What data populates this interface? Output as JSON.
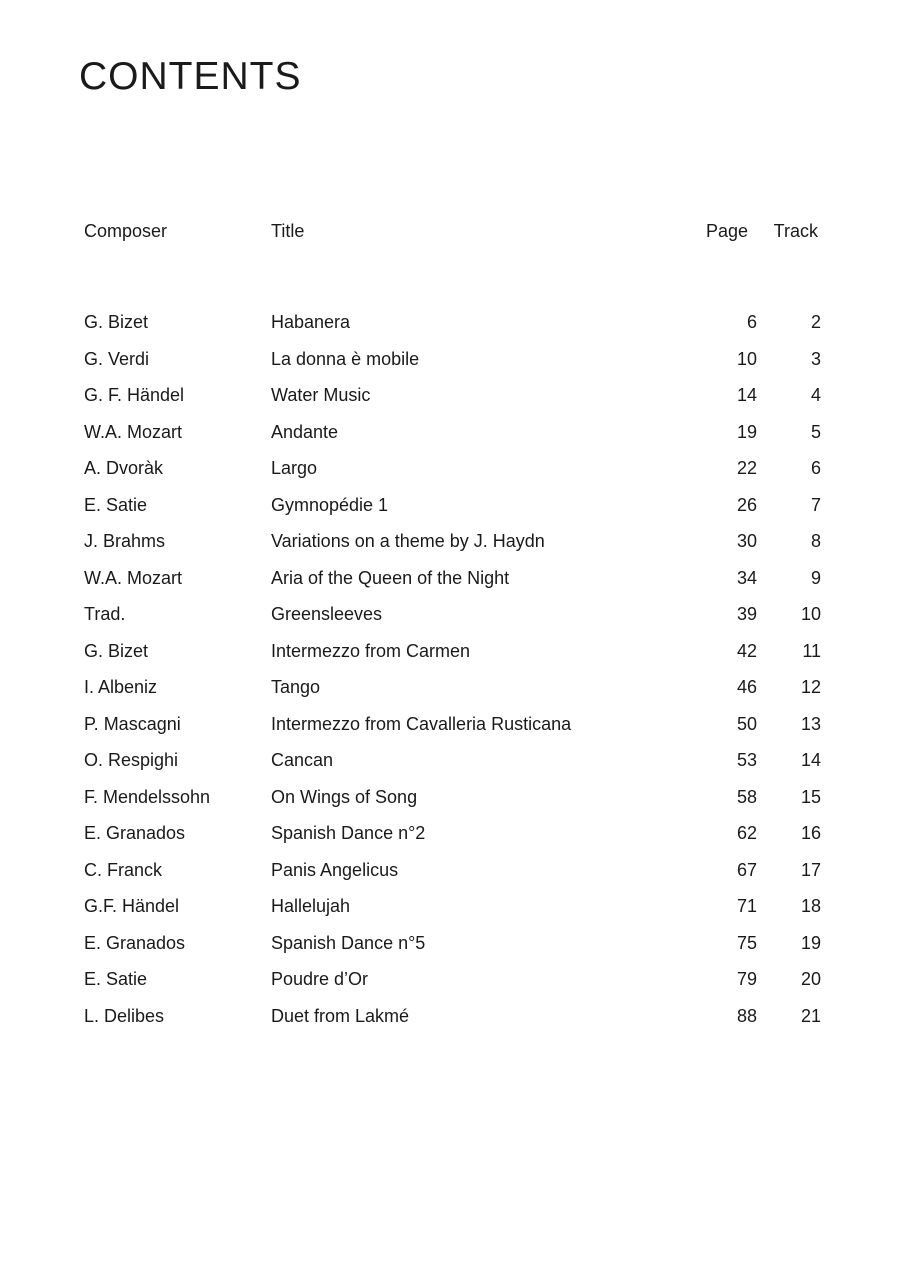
{
  "title": "CONTENTS",
  "headers": {
    "composer": "Composer",
    "title": "Title",
    "page": "Page",
    "track": "Track"
  },
  "rows": [
    {
      "composer": "G. Bizet",
      "title": "Habanera",
      "page": "6",
      "track": "2"
    },
    {
      "composer": "G. Verdi",
      "title": "La donna è mobile",
      "page": "10",
      "track": "3"
    },
    {
      "composer": "G. F. Händel",
      "title": "Water Music",
      "page": "14",
      "track": "4"
    },
    {
      "composer": "W.A. Mozart",
      "title": "Andante",
      "page": "19",
      "track": "5"
    },
    {
      "composer": "A. Dvoràk",
      "title": "Largo",
      "page": "22",
      "track": "6"
    },
    {
      "composer": "E. Satie",
      "title": "Gymnopédie 1",
      "page": "26",
      "track": "7"
    },
    {
      "composer": "J. Brahms",
      "title": "Variations on a theme by J. Haydn",
      "page": "30",
      "track": "8"
    },
    {
      "composer": "W.A. Mozart",
      "title": "Aria of the Queen of the Night",
      "page": "34",
      "track": "9"
    },
    {
      "composer": "Trad.",
      "title": "Greensleeves",
      "page": "39",
      "track": "10"
    },
    {
      "composer": "G. Bizet",
      "title": "Intermezzo from Carmen",
      "page": "42",
      "track": "11"
    },
    {
      "composer": "I. Albeniz",
      "title": "Tango",
      "page": "46",
      "track": "12"
    },
    {
      "composer": "P. Mascagni",
      "title": "Intermezzo from Cavalleria Rusticana",
      "page": "50",
      "track": "13"
    },
    {
      "composer": "O. Respighi",
      "title": "Cancan",
      "page": "53",
      "track": "14"
    },
    {
      "composer": "F. Mendelssohn",
      "title": "On Wings of Song",
      "page": "58",
      "track": "15"
    },
    {
      "composer": "E. Granados",
      "title": "Spanish Dance n°2",
      "page": "62",
      "track": "16"
    },
    {
      "composer": "C. Franck",
      "title": "Panis Angelicus",
      "page": "67",
      "track": "17"
    },
    {
      "composer": "G.F. Händel",
      "title": "Hallelujah",
      "page": "71",
      "track": "18"
    },
    {
      "composer": "E. Granados",
      "title": "Spanish Dance n°5",
      "page": "75",
      "track": "19"
    },
    {
      "composer": "E. Satie",
      "title": "Poudre d’Or",
      "page": "79",
      "track": "20"
    },
    {
      "composer": "L. Delibes",
      "title": "Duet from Lakmé",
      "page": "88",
      "track": "21"
    }
  ]
}
